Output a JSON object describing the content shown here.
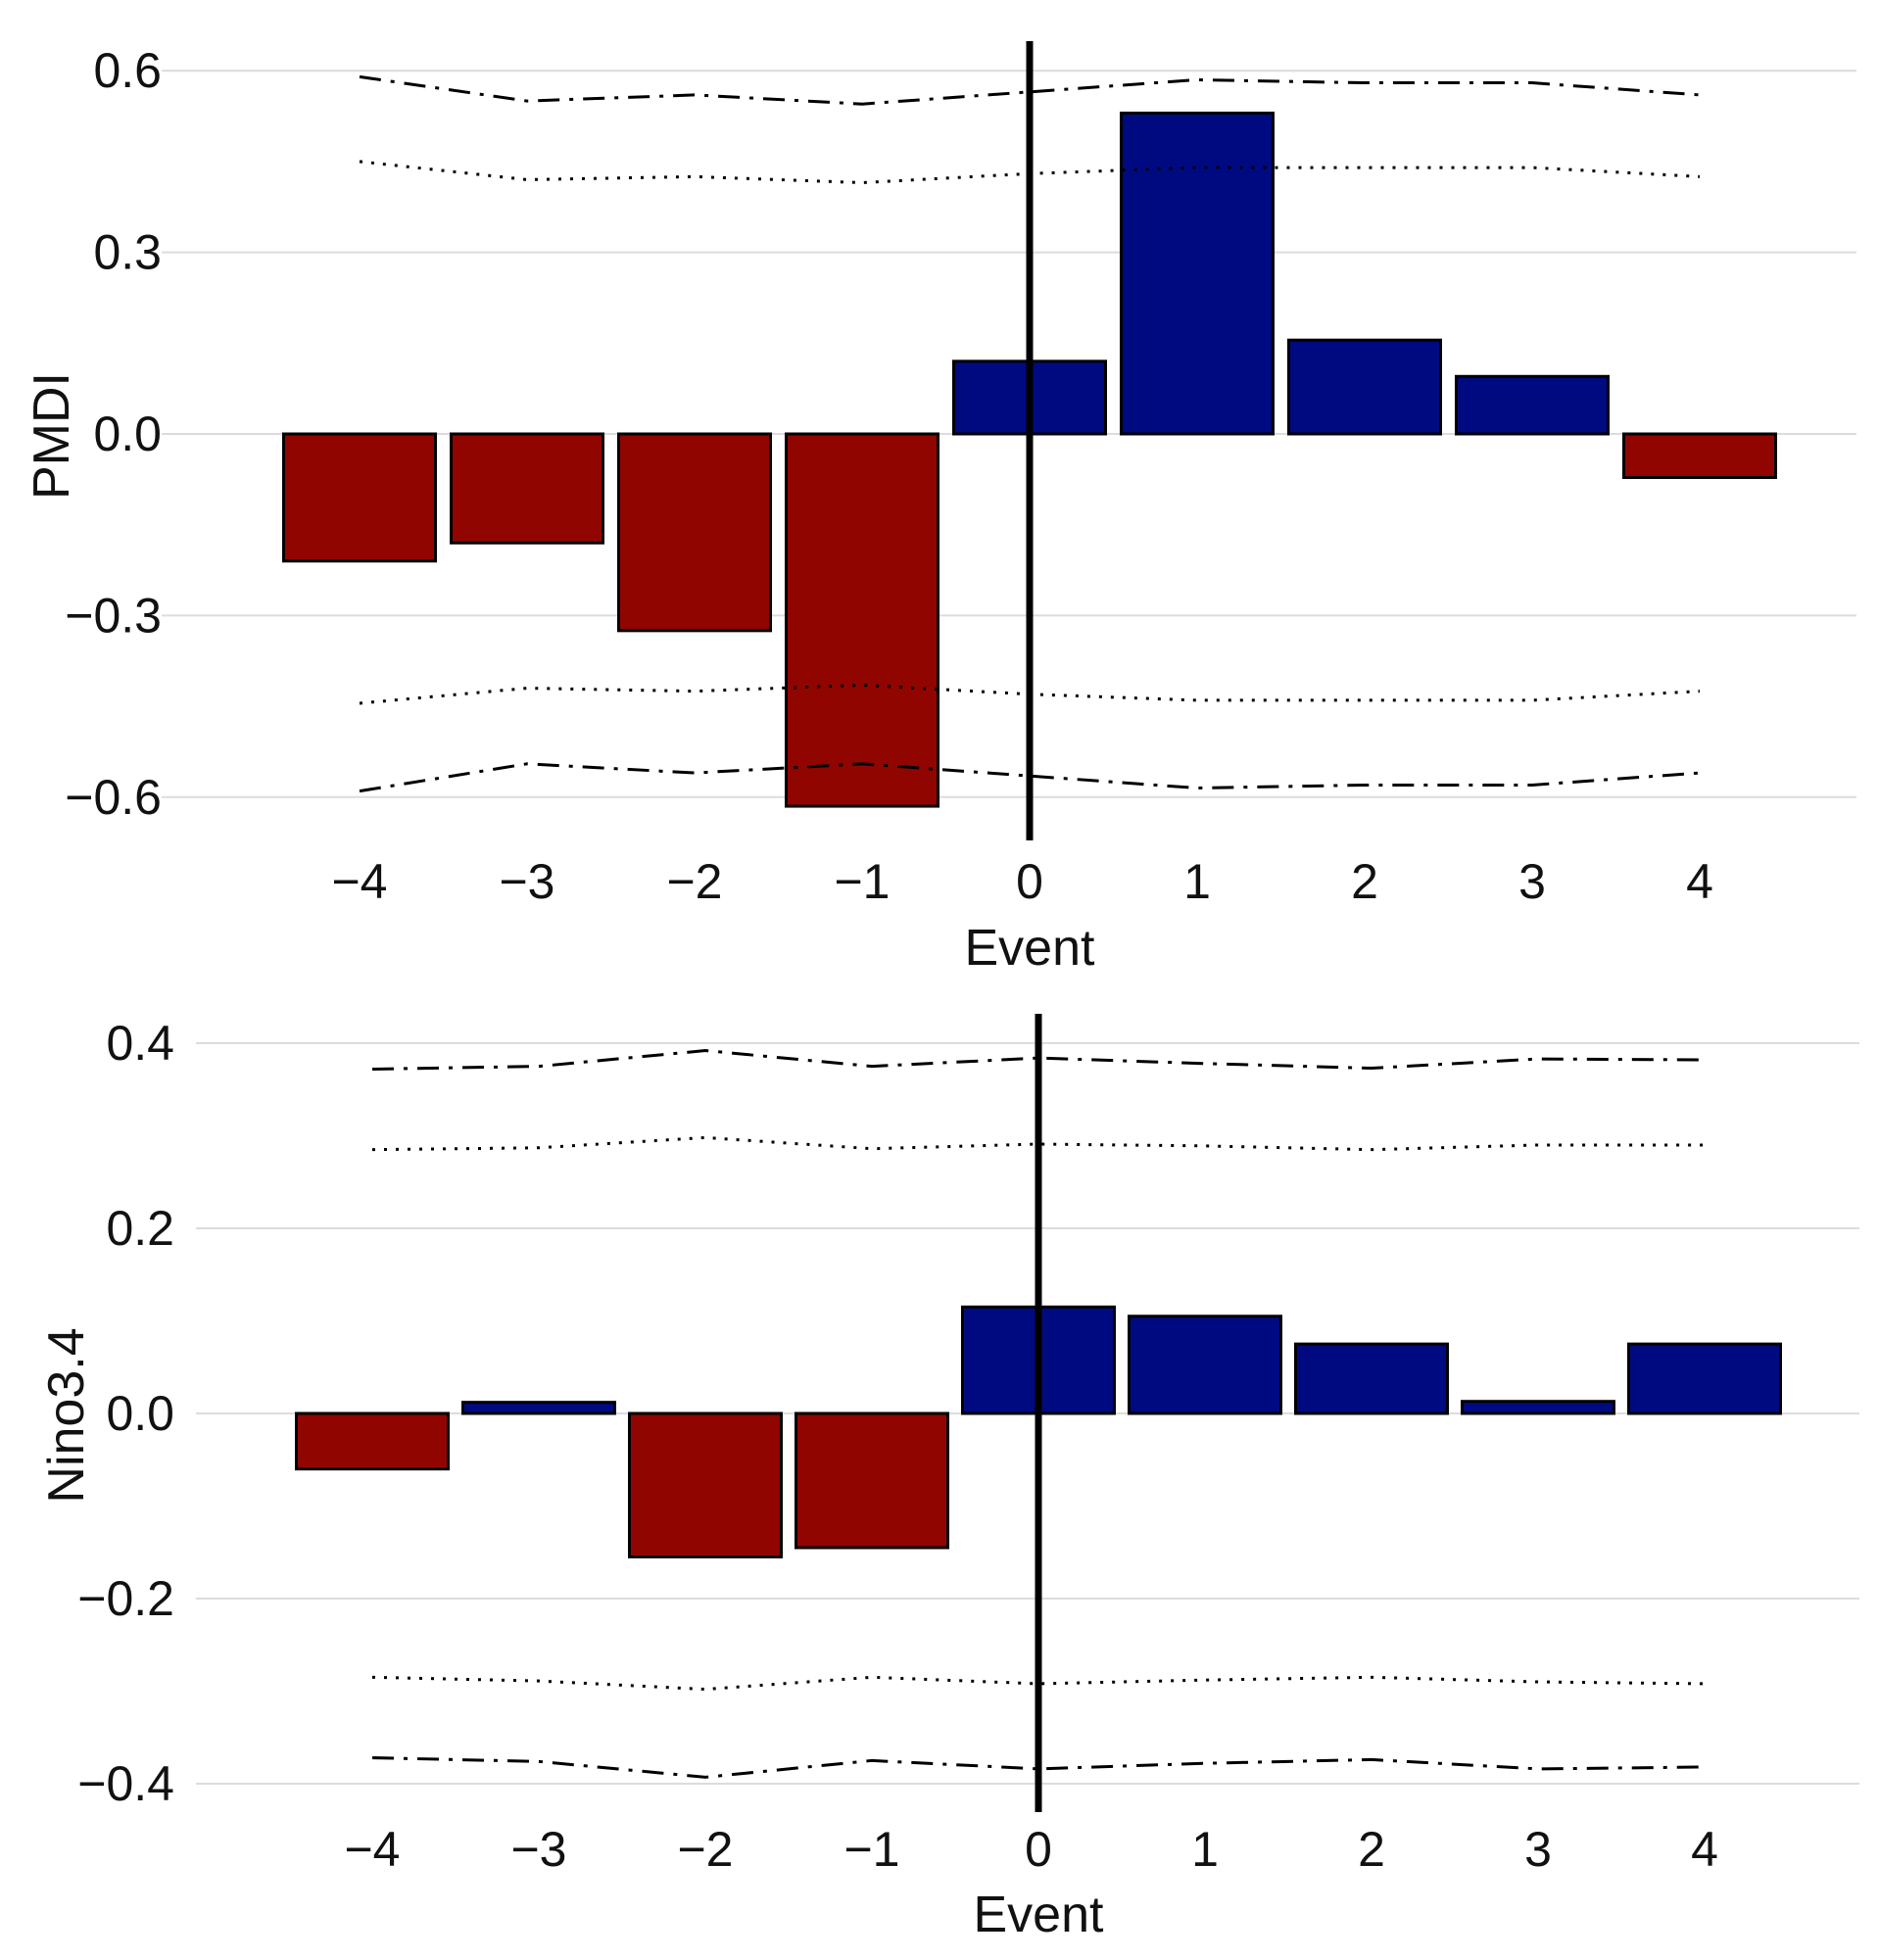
{
  "colors": {
    "positive": "#000a80",
    "negative": "#910500",
    "grid": "#dcdcdc",
    "event_line": "#000000"
  },
  "chart_data": [
    {
      "type": "bar",
      "id": "pmdi",
      "xlabel": "Event",
      "ylabel": "PMDI",
      "categories": [
        "−4",
        "−3",
        "−2",
        "−1",
        "0",
        "1",
        "2",
        "3",
        "4"
      ],
      "x": [
        -4,
        -3,
        -2,
        -1,
        0,
        1,
        2,
        3,
        4
      ],
      "values": [
        -0.21,
        -0.18,
        -0.325,
        -0.615,
        0.12,
        0.53,
        0.155,
        0.095,
        -0.072
      ],
      "ylim": [
        -0.66,
        0.65
      ],
      "yticks": [
        0.6,
        0.3,
        0.0,
        -0.3,
        -0.6
      ],
      "ytick_labels": [
        "0.6",
        "0.3",
        "0.0",
        "−0.3",
        "−0.6"
      ],
      "grid": true,
      "event_line_x": 0,
      "confidence_bands": [
        {
          "name": "upper dash-dot",
          "style": "dashdot",
          "values": [
            0.59,
            0.55,
            0.56,
            0.545,
            0.565,
            0.585,
            0.58,
            0.58,
            0.56
          ]
        },
        {
          "name": "upper dotted",
          "style": "dotted",
          "values": [
            0.45,
            0.42,
            0.425,
            0.415,
            0.43,
            0.44,
            0.44,
            0.44,
            0.425
          ]
        },
        {
          "name": "lower dotted",
          "style": "dotted",
          "values": [
            -0.445,
            -0.42,
            -0.425,
            -0.415,
            -0.43,
            -0.44,
            -0.44,
            -0.44,
            -0.425
          ]
        },
        {
          "name": "lower dash-dot",
          "style": "dashdot",
          "values": [
            -0.59,
            -0.545,
            -0.56,
            -0.545,
            -0.565,
            -0.585,
            -0.58,
            -0.58,
            -0.56
          ]
        }
      ]
    },
    {
      "type": "bar",
      "id": "nino34",
      "xlabel": "Event",
      "ylabel": "Nino3.4",
      "categories": [
        "−4",
        "−3",
        "−2",
        "−1",
        "0",
        "1",
        "2",
        "3",
        "4"
      ],
      "x": [
        -4,
        -3,
        -2,
        -1,
        0,
        1,
        2,
        3,
        4
      ],
      "values": [
        -0.06,
        0.012,
        -0.155,
        -0.145,
        0.115,
        0.105,
        0.075,
        0.013,
        0.075
      ],
      "ylim": [
        -0.43,
        0.43
      ],
      "yticks": [
        0.4,
        0.2,
        0.0,
        -0.2,
        -0.4
      ],
      "ytick_labels": [
        "0.4",
        "0.2",
        "0.0",
        "−0.2",
        "−0.4"
      ],
      "grid": true,
      "event_line_x": 0,
      "confidence_bands": [
        {
          "name": "upper dash-dot",
          "style": "dashdot",
          "values": [
            0.372,
            0.375,
            0.392,
            0.375,
            0.384,
            0.378,
            0.373,
            0.383,
            0.382
          ]
        },
        {
          "name": "upper dotted",
          "style": "dotted",
          "values": [
            0.285,
            0.287,
            0.298,
            0.286,
            0.291,
            0.289,
            0.285,
            0.29,
            0.29
          ]
        },
        {
          "name": "lower dotted",
          "style": "dotted",
          "values": [
            -0.285,
            -0.289,
            -0.298,
            -0.285,
            -0.292,
            -0.288,
            -0.285,
            -0.29,
            -0.292
          ]
        },
        {
          "name": "lower dash-dot",
          "style": "dashdot",
          "values": [
            -0.372,
            -0.376,
            -0.393,
            -0.375,
            -0.384,
            -0.378,
            -0.374,
            -0.384,
            -0.382
          ]
        }
      ]
    }
  ]
}
